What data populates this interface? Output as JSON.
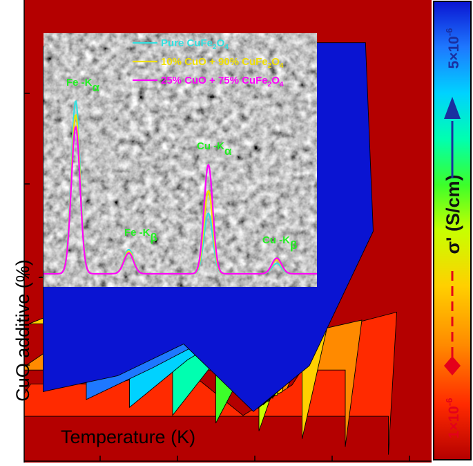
{
  "chart_data": [
    {
      "type": "heatmap",
      "title": "",
      "xlabel": "Temperature (K)",
      "ylabel": "CuO additive (%)",
      "colorbar": {
        "label": "σ' (S/cm)",
        "min_label": "1×10",
        "min_exp": "-6",
        "max_label": "5×10",
        "max_exp": "-6",
        "min": 1e-06,
        "max": 5e-06,
        "min_color": "#e4001a",
        "max_color": "#1a2fa0",
        "stops": [
          "#b40000",
          "#ff2a00",
          "#ff8a00",
          "#ffd000",
          "#c8ff00",
          "#3cff2a",
          "#00ffb0",
          "#00d2ff",
          "#1e78ff",
          "#0a14d2"
        ]
      },
      "grid": false,
      "note_levels": "conductivity increases toward top-right (blue)"
    },
    {
      "type": "line",
      "title": "",
      "xlabel": "",
      "ylabel": "",
      "background": "SEM micrograph",
      "series": [
        {
          "name": "Pure CuFe2O4",
          "name_parts": [
            "Pure CuFe",
            "2",
            "O",
            "4"
          ],
          "color": "#33e0e0",
          "peaks": [
            {
              "x": 6.4,
              "height": 1.0
            },
            {
              "x": 7.06,
              "height": 0.14
            },
            {
              "x": 8.05,
              "height": 0.35
            },
            {
              "x": 8.9,
              "height": 0.06
            }
          ]
        },
        {
          "name": "10% CuO + 90% CuFe2O4",
          "name_parts": [
            "10% CuO + 90% CuFe",
            "2",
            "O",
            "4"
          ],
          "color": "#f0e000",
          "peaks": [
            {
              "x": 6.4,
              "height": 0.92
            },
            {
              "x": 7.06,
              "height": 0.13
            },
            {
              "x": 8.05,
              "height": 0.48
            },
            {
              "x": 8.9,
              "height": 0.08
            }
          ]
        },
        {
          "name": "25% CuO + 75% CuFe2O4",
          "name_parts": [
            "25% CuO + 75% CuFe",
            "2",
            "O",
            "4"
          ],
          "color": "#ff00ff",
          "peaks": [
            {
              "x": 6.4,
              "height": 0.85
            },
            {
              "x": 7.06,
              "height": 0.12
            },
            {
              "x": 8.05,
              "height": 0.63
            },
            {
              "x": 8.9,
              "height": 0.09
            }
          ]
        }
      ],
      "annotations": [
        {
          "text": "Fe -K",
          "sub": "α"
        },
        {
          "text": "Fe -K",
          "sub": "β"
        },
        {
          "text": "Cu -K",
          "sub": "α"
        },
        {
          "text": "Cu -K",
          "sub": "β"
        }
      ],
      "annotation_color": "#22ee22",
      "x_range_keV": [
        6.0,
        9.4
      ]
    }
  ]
}
